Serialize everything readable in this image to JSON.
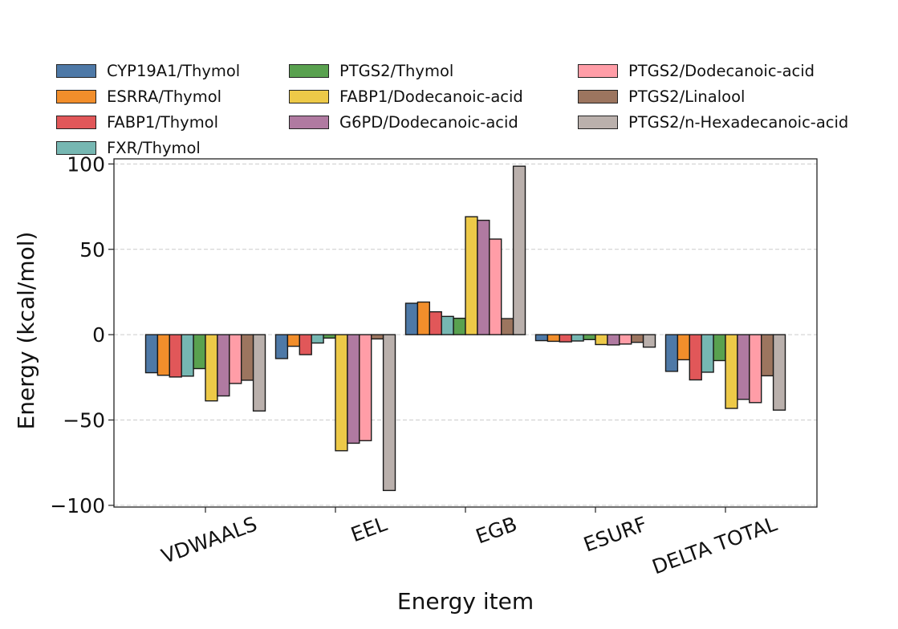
{
  "chart_data": {
    "type": "bar",
    "title": "",
    "xlabel": "Energy item",
    "ylabel": "Energy (kcal/mol)",
    "ylim": [
      -101,
      103
    ],
    "yticks": [
      -100,
      -50,
      0,
      50,
      100
    ],
    "ytick_labels": [
      "−100",
      "−50",
      "0",
      "50",
      "100"
    ],
    "grid": "y-dashed",
    "legend_placement": "top (above plot, 3 columns)",
    "categories": [
      "VDWAALS",
      "EEL",
      "EGB",
      "ESURF",
      "DELTA TOTAL"
    ],
    "series": [
      {
        "name": "CYP19A1/Thymol",
        "color": "#4e79a7",
        "values": [
          -22.3,
          -14.0,
          18.4,
          -3.5,
          -21.5
        ]
      },
      {
        "name": "ESRRA/Thymol",
        "color": "#f28e2b",
        "values": [
          -23.8,
          -6.8,
          19.1,
          -3.9,
          -14.7
        ]
      },
      {
        "name": "FABP1/Thymol",
        "color": "#e15759",
        "values": [
          -24.8,
          -11.7,
          13.4,
          -4.2,
          -26.5
        ]
      },
      {
        "name": "FXR/Thymol",
        "color": "#76b7b2",
        "values": [
          -24.3,
          -4.9,
          10.7,
          -3.7,
          -22.0
        ]
      },
      {
        "name": "PTGS2/Thymol",
        "color": "#59a14f",
        "values": [
          -19.9,
          -2.0,
          9.6,
          -2.9,
          -15.2
        ]
      },
      {
        "name": "FABP1/Dodecanoic-acid",
        "color": "#edc948",
        "values": [
          -38.8,
          -68.0,
          69.1,
          -5.8,
          -43.2
        ]
      },
      {
        "name": "G6PD/Dodecanoic-acid",
        "color": "#b07aa1",
        "values": [
          -35.9,
          -63.6,
          67.0,
          -6.0,
          -37.9
        ]
      },
      {
        "name": "PTGS2/Dodecanoic-acid",
        "color": "#ff9da7",
        "values": [
          -28.6,
          -62.1,
          56.0,
          -5.5,
          -39.8
        ]
      },
      {
        "name": "PTGS2/Linalool",
        "color": "#9c755f",
        "values": [
          -26.7,
          -2.5,
          9.4,
          -4.5,
          -24.1
        ]
      },
      {
        "name": "PTGS2/n-Hexadecanoic-acid",
        "color": "#bab0ac",
        "values": [
          -44.7,
          -91.3,
          98.7,
          -7.3,
          -44.2
        ]
      }
    ]
  }
}
